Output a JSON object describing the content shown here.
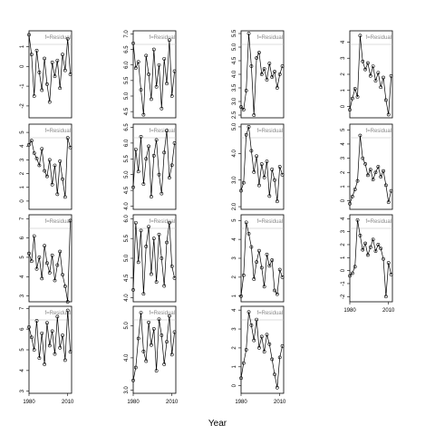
{
  "chart_data": {
    "type": "line",
    "xlabel": "Year",
    "legend": "none",
    "grid": false,
    "x_ticks": [
      1980,
      2010
    ],
    "strip_label": "f=Residual",
    "panels": [
      {
        "col": 0,
        "row": 0,
        "xlim": [
          1980,
          2013
        ],
        "ylim": [
          -2.6,
          1.8
        ],
        "yticks": [
          -2,
          -1,
          0,
          1
        ],
        "ytick_labels": [
          "-2",
          "-1",
          "0",
          "1"
        ],
        "x": [
          1980,
          1982,
          1984,
          1986,
          1988,
          1990,
          1992,
          1994,
          1996,
          1998,
          2000,
          2002,
          2004,
          2006,
          2008,
          2010,
          2012
        ],
        "y": [
          1.6,
          0.6,
          -1.5,
          0.8,
          -0.3,
          -1.2,
          0.4,
          -0.9,
          -1.8,
          0.2,
          -0.5,
          0.3,
          -1.1,
          0.6,
          -0.2,
          1.4,
          -0.4
        ]
      },
      {
        "col": 0,
        "row": 1,
        "xlim": [
          1980,
          2013
        ],
        "ylim": [
          -0.6,
          5.6
        ],
        "yticks": [
          0,
          1,
          2,
          3,
          4,
          5
        ],
        "ytick_labels": [
          "0",
          "1",
          "2",
          "3",
          "4",
          "5"
        ],
        "x": [
          1980,
          1982,
          1984,
          1986,
          1988,
          1990,
          1992,
          1994,
          1996,
          1998,
          2000,
          2002,
          2004,
          2006,
          2008,
          2010,
          2012
        ],
        "y": [
          4.1,
          4.4,
          3.5,
          3.1,
          2.6,
          3.8,
          2.2,
          1.8,
          3.0,
          1.2,
          2.6,
          0.5,
          2.9,
          1.6,
          0.3,
          4.6,
          3.9
        ]
      },
      {
        "col": 0,
        "row": 2,
        "xlim": [
          1980,
          2013
        ],
        "ylim": [
          2.7,
          7.2
        ],
        "yticks": [
          3,
          4,
          5,
          6,
          7
        ],
        "ytick_labels": [
          "3",
          "4",
          "5",
          "6",
          "7"
        ],
        "x": [
          1980,
          1982,
          1984,
          1986,
          1988,
          1990,
          1992,
          1994,
          1996,
          1998,
          2000,
          2002,
          2004,
          2006,
          2008,
          2010,
          2012
        ],
        "y": [
          5.2,
          4.8,
          6.1,
          4.4,
          5.0,
          3.9,
          5.6,
          4.7,
          4.2,
          5.1,
          3.8,
          4.6,
          5.3,
          4.1,
          3.5,
          2.7,
          6.9
        ]
      },
      {
        "col": 0,
        "row": 3,
        "xlim": [
          1980,
          2013
        ],
        "ylim": [
          2.9,
          7.1
        ],
        "yticks": [
          3,
          4,
          5,
          6,
          7
        ],
        "ytick_labels": [
          "3",
          "4",
          "5",
          "6",
          "7"
        ],
        "x": [
          1980,
          1982,
          1984,
          1986,
          1988,
          1990,
          1992,
          1994,
          1996,
          1998,
          2000,
          2002,
          2004,
          2006,
          2008,
          2010,
          2012
        ],
        "y": [
          6.1,
          5.6,
          5.0,
          6.4,
          4.6,
          5.8,
          4.3,
          6.3,
          5.2,
          5.9,
          4.8,
          6.6,
          5.1,
          5.7,
          4.5,
          6.9,
          4.9
        ]
      },
      {
        "col": 1,
        "row": 0,
        "xlim": [
          1980,
          2013
        ],
        "ylim": [
          4.3,
          7.1
        ],
        "yticks": [
          4.5,
          5.0,
          5.5,
          6.0,
          6.5,
          7.0
        ],
        "ytick_labels": [
          "4.5",
          "5.0",
          "5.5",
          "6.0",
          "6.5",
          "7.0"
        ],
        "x": [
          1980,
          1982,
          1984,
          1986,
          1988,
          1990,
          1992,
          1994,
          1996,
          1998,
          2000,
          2002,
          2004,
          2006,
          2008,
          2010,
          2012
        ],
        "y": [
          6.7,
          5.9,
          6.1,
          5.2,
          4.4,
          6.3,
          5.7,
          4.9,
          6.5,
          5.3,
          6.0,
          4.6,
          6.2,
          5.4,
          6.8,
          5.0,
          5.8
        ]
      },
      {
        "col": 1,
        "row": 1,
        "xlim": [
          1980,
          2013
        ],
        "ylim": [
          3.9,
          6.6
        ],
        "yticks": [
          4.0,
          4.5,
          5.0,
          5.5,
          6.0,
          6.5
        ],
        "ytick_labels": [
          "4.0",
          "4.5",
          "5.0",
          "5.5",
          "6.0",
          "6.5"
        ],
        "x": [
          1980,
          1982,
          1984,
          1986,
          1988,
          1990,
          1992,
          1994,
          1996,
          1998,
          2000,
          2002,
          2004,
          2006,
          2008,
          2010,
          2012
        ],
        "y": [
          4.6,
          5.8,
          5.1,
          6.2,
          4.7,
          5.5,
          5.9,
          4.3,
          5.6,
          6.1,
          5.0,
          4.4,
          5.7,
          6.4,
          4.9,
          5.3,
          6.0
        ]
      },
      {
        "col": 1,
        "row": 2,
        "xlim": [
          1980,
          2013
        ],
        "ylim": [
          3.9,
          6.1
        ],
        "yticks": [
          4.0,
          4.5,
          5.0,
          5.5,
          6.0
        ],
        "ytick_labels": [
          "4.0",
          "4.5",
          "5.0",
          "5.5",
          "6.0"
        ],
        "x": [
          1980,
          1982,
          1984,
          1986,
          1988,
          1990,
          1992,
          1994,
          1996,
          1998,
          2000,
          2002,
          2004,
          2006,
          2008,
          2010,
          2012
        ],
        "y": [
          4.2,
          5.9,
          4.9,
          5.7,
          4.1,
          5.3,
          5.8,
          4.6,
          5.5,
          4.4,
          5.6,
          5.0,
          4.3,
          5.4,
          5.9,
          4.8,
          4.5
        ]
      },
      {
        "col": 1,
        "row": 3,
        "xlim": [
          1980,
          2013
        ],
        "ylim": [
          2.9,
          5.6
        ],
        "yticks": [
          3.0,
          4.0,
          5.0
        ],
        "ytick_labels": [
          "3.0",
          "4.0",
          "5.0"
        ],
        "x": [
          1980,
          1982,
          1984,
          1986,
          1988,
          1990,
          1992,
          1994,
          1996,
          1998,
          2000,
          2002,
          2004,
          2006,
          2008,
          2010,
          2012
        ],
        "y": [
          3.3,
          3.7,
          4.6,
          5.4,
          4.2,
          3.9,
          5.1,
          4.4,
          4.9,
          3.6,
          5.2,
          4.7,
          3.8,
          4.5,
          5.3,
          4.1,
          4.8
        ]
      },
      {
        "col": 2,
        "row": 0,
        "xlim": [
          1980,
          2013
        ],
        "ylim": [
          2.4,
          5.6
        ],
        "yticks": [
          2.5,
          3.0,
          3.5,
          4.0,
          4.5,
          5.0,
          5.5
        ],
        "ytick_labels": [
          "2.5",
          "3.0",
          "3.5",
          "4.0",
          "4.5",
          "5.0",
          "5.5"
        ],
        "x": [
          1980,
          1982,
          1984,
          1986,
          1988,
          1990,
          1992,
          1994,
          1996,
          1998,
          2000,
          2002,
          2004,
          2006,
          2008,
          2010,
          2012
        ],
        "y": [
          2.8,
          2.7,
          3.4,
          5.5,
          4.3,
          2.5,
          4.6,
          4.8,
          4.0,
          4.2,
          3.8,
          4.4,
          3.9,
          4.1,
          3.5,
          4.0,
          4.3
        ]
      },
      {
        "col": 2,
        "row": 1,
        "xlim": [
          1980,
          2013
        ],
        "ylim": [
          1.9,
          5.1
        ],
        "yticks": [
          2.0,
          3.0,
          4.0,
          5.0
        ],
        "ytick_labels": [
          "2.0",
          "3.0",
          "4.0",
          "5.0"
        ],
        "x": [
          1980,
          1982,
          1984,
          1986,
          1988,
          1990,
          1992,
          1994,
          1996,
          1998,
          2000,
          2002,
          2004,
          2006,
          2008,
          2010,
          2012
        ],
        "y": [
          2.6,
          2.9,
          4.7,
          5.0,
          4.1,
          3.3,
          3.9,
          2.8,
          3.6,
          3.1,
          3.7,
          2.4,
          3.4,
          3.0,
          2.2,
          3.5,
          3.2
        ]
      },
      {
        "col": 2,
        "row": 2,
        "xlim": [
          1980,
          2013
        ],
        "ylim": [
          0.7,
          5.3
        ],
        "yticks": [
          1,
          2,
          3,
          4,
          5
        ],
        "ytick_labels": [
          "1",
          "2",
          "3",
          "4",
          "5"
        ],
        "x": [
          1980,
          1982,
          1984,
          1986,
          1988,
          1990,
          1992,
          1994,
          1996,
          1998,
          2000,
          2002,
          2004,
          2006,
          2008,
          2010,
          2012
        ],
        "y": [
          1.0,
          2.1,
          4.9,
          4.3,
          3.6,
          1.9,
          2.8,
          3.4,
          2.5,
          1.5,
          3.2,
          2.6,
          2.9,
          1.3,
          1.1,
          2.4,
          2.0
        ]
      },
      {
        "col": 2,
        "row": 3,
        "xlim": [
          1980,
          2013
        ],
        "ylim": [
          -0.4,
          4.2
        ],
        "yticks": [
          0,
          1,
          2,
          3,
          4
        ],
        "ytick_labels": [
          "0",
          "1",
          "2",
          "3",
          "4"
        ],
        "x": [
          1980,
          1982,
          1984,
          1986,
          1988,
          1990,
          1992,
          1994,
          1996,
          1998,
          2000,
          2002,
          2004,
          2006,
          2008,
          2010,
          2012
        ],
        "y": [
          0.4,
          1.2,
          1.9,
          3.9,
          3.2,
          2.4,
          3.5,
          2.0,
          2.6,
          1.8,
          2.7,
          2.2,
          1.4,
          0.6,
          -0.1,
          1.5,
          2.1
        ]
      },
      {
        "col": 3,
        "row": 0,
        "xlim": [
          1980,
          2013
        ],
        "ylim": [
          -0.7,
          4.7
        ],
        "yticks": [
          0,
          1,
          2,
          3,
          4
        ],
        "ytick_labels": [
          "0",
          "1",
          "2",
          "3",
          "4"
        ],
        "x": [
          1980,
          1982,
          1984,
          1986,
          1988,
          1990,
          1992,
          1994,
          1996,
          1998,
          2000,
          2002,
          2004,
          2006,
          2008,
          2010,
          2012
        ],
        "y": [
          -0.2,
          0.5,
          1.1,
          0.6,
          4.4,
          2.8,
          2.3,
          2.7,
          1.9,
          2.5,
          1.6,
          2.1,
          1.2,
          1.8,
          0.4,
          -0.5,
          1.9
        ]
      },
      {
        "col": 3,
        "row": 1,
        "xlim": [
          1980,
          2013
        ],
        "ylim": [
          -0.6,
          5.4
        ],
        "yticks": [
          0,
          1,
          2,
          3,
          4,
          5
        ],
        "ytick_labels": [
          "0",
          "1",
          "2",
          "3",
          "4",
          "5"
        ],
        "x": [
          1980,
          1982,
          1984,
          1986,
          1988,
          1990,
          1992,
          1994,
          1996,
          1998,
          2000,
          2002,
          2004,
          2006,
          2008,
          2010,
          2012
        ],
        "y": [
          -0.2,
          0.3,
          0.8,
          1.4,
          4.6,
          3.0,
          2.6,
          1.8,
          2.2,
          1.5,
          2.0,
          2.4,
          1.7,
          2.1,
          1.1,
          -0.1,
          0.7
        ]
      },
      {
        "col": 3,
        "row": 2,
        "xlim": [
          1980,
          2013
        ],
        "ylim": [
          -2.4,
          4.3
        ],
        "yticks": [
          -2,
          -1,
          0,
          1,
          2,
          3,
          4
        ],
        "ytick_labels": [
          "-2",
          "-1",
          "0",
          "1",
          "2",
          "3",
          "4"
        ],
        "x": [
          1980,
          1982,
          1984,
          1986,
          1988,
          1990,
          1992,
          1994,
          1996,
          1998,
          2000,
          2002,
          2004,
          2006,
          2008,
          2010,
          2012
        ],
        "y": [
          -0.4,
          -0.2,
          0.3,
          3.9,
          2.7,
          1.6,
          2.1,
          1.2,
          1.8,
          2.4,
          1.5,
          2.0,
          1.7,
          0.9,
          -2.0,
          0.6,
          -0.3
        ]
      }
    ]
  }
}
